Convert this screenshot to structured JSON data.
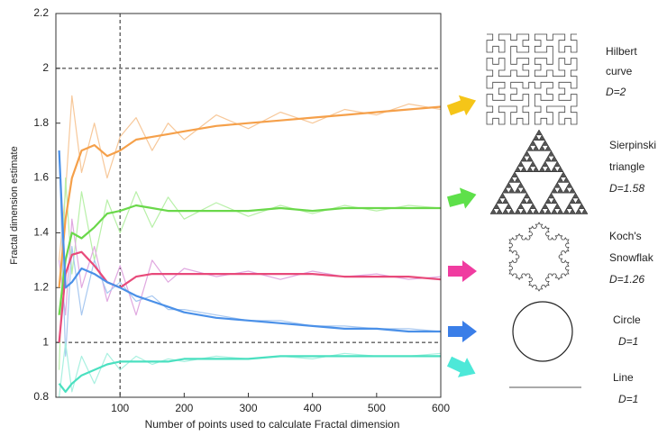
{
  "chart_data": {
    "type": "line",
    "xlabel": "Number of points used to calculate Fractal dimension",
    "ylabel": "Fractal dimension estimate",
    "x": [
      5,
      15,
      25,
      40,
      60,
      80,
      100,
      125,
      150,
      175,
      200,
      250,
      300,
      350,
      400,
      450,
      500,
      550,
      600
    ],
    "xlim": [
      0,
      600
    ],
    "ylim": [
      0.8,
      2.2
    ],
    "xticks": [
      100,
      200,
      300,
      400,
      500,
      600
    ],
    "yticks": [
      0.8,
      1,
      1.2,
      1.4,
      1.6,
      1.8,
      2,
      2.2
    ],
    "hlines": [
      2,
      1
    ],
    "vlines": [
      100
    ],
    "series": [
      {
        "color": "#f7c89a",
        "faint": true,
        "values": [
          1.3,
          1.55,
          1.9,
          1.62,
          1.8,
          1.6,
          1.75,
          1.82,
          1.7,
          1.8,
          1.74,
          1.83,
          1.78,
          1.84,
          1.8,
          1.85,
          1.83,
          1.87,
          1.85
        ]
      },
      {
        "color": "#b8f0a8",
        "faint": true,
        "values": [
          0.9,
          1.6,
          1.25,
          1.55,
          1.3,
          1.52,
          1.4,
          1.55,
          1.42,
          1.53,
          1.45,
          1.51,
          1.46,
          1.5,
          1.47,
          1.5,
          1.48,
          1.5,
          1.49
        ]
      },
      {
        "color": "#e0a8e0",
        "faint": true,
        "values": [
          1.3,
          1.1,
          1.45,
          1.2,
          1.35,
          1.15,
          1.28,
          1.1,
          1.3,
          1.22,
          1.27,
          1.24,
          1.26,
          1.23,
          1.26,
          1.24,
          1.25,
          1.23,
          1.24
        ]
      },
      {
        "color": "#a8c8f0",
        "faint": true,
        "values": [
          1.7,
          0.95,
          1.35,
          1.1,
          1.3,
          1.18,
          1.22,
          1.15,
          1.17,
          1.12,
          1.12,
          1.1,
          1.08,
          1.08,
          1.06,
          1.06,
          1.05,
          1.05,
          1.04
        ]
      },
      {
        "color": "#a8f0e0",
        "faint": true,
        "values": [
          0.8,
          1.0,
          0.82,
          0.95,
          0.85,
          0.96,
          0.9,
          0.95,
          0.92,
          0.94,
          0.93,
          0.95,
          0.94,
          0.95,
          0.94,
          0.96,
          0.95,
          0.95,
          0.96
        ]
      },
      {
        "color": "#f5a04a",
        "values": [
          1.2,
          1.45,
          1.6,
          1.7,
          1.72,
          1.68,
          1.7,
          1.74,
          1.75,
          1.76,
          1.77,
          1.79,
          1.8,
          1.81,
          1.82,
          1.83,
          1.84,
          1.85,
          1.86
        ]
      },
      {
        "color": "#6ad84a",
        "values": [
          1.1,
          1.3,
          1.4,
          1.38,
          1.42,
          1.47,
          1.48,
          1.5,
          1.49,
          1.48,
          1.48,
          1.48,
          1.48,
          1.49,
          1.48,
          1.49,
          1.49,
          1.49,
          1.49
        ]
      },
      {
        "color": "#e84a7a",
        "values": [
          1.0,
          1.25,
          1.32,
          1.33,
          1.28,
          1.22,
          1.2,
          1.24,
          1.25,
          1.25,
          1.25,
          1.25,
          1.25,
          1.25,
          1.25,
          1.24,
          1.24,
          1.24,
          1.23
        ]
      },
      {
        "color": "#4a90e8",
        "values": [
          1.7,
          1.2,
          1.22,
          1.27,
          1.25,
          1.22,
          1.2,
          1.17,
          1.15,
          1.13,
          1.11,
          1.09,
          1.08,
          1.07,
          1.06,
          1.05,
          1.05,
          1.04,
          1.04
        ]
      },
      {
        "color": "#4ae0c0",
        "values": [
          0.85,
          0.82,
          0.85,
          0.88,
          0.9,
          0.92,
          0.93,
          0.93,
          0.93,
          0.93,
          0.94,
          0.94,
          0.94,
          0.95,
          0.95,
          0.95,
          0.95,
          0.95,
          0.95
        ]
      }
    ],
    "illustrations": [
      {
        "shape": "hilbert",
        "color": "#f5c518",
        "label": [
          "Hilbert",
          "curve",
          "D=2"
        ]
      },
      {
        "shape": "sierpinski",
        "color": "#5ee04a",
        "label": [
          "Sierpinski",
          "triangle",
          "D=1.58"
        ]
      },
      {
        "shape": "koch",
        "color": "#f03ca0",
        "label": [
          "Koch's",
          "Snowflak",
          "D=1.26"
        ]
      },
      {
        "shape": "circle",
        "color": "#3a7ee8",
        "label": [
          "Circle",
          "D=1"
        ]
      },
      {
        "shape": "line",
        "color": "#4de8d8",
        "label": [
          "Line",
          "D=1"
        ]
      }
    ]
  }
}
